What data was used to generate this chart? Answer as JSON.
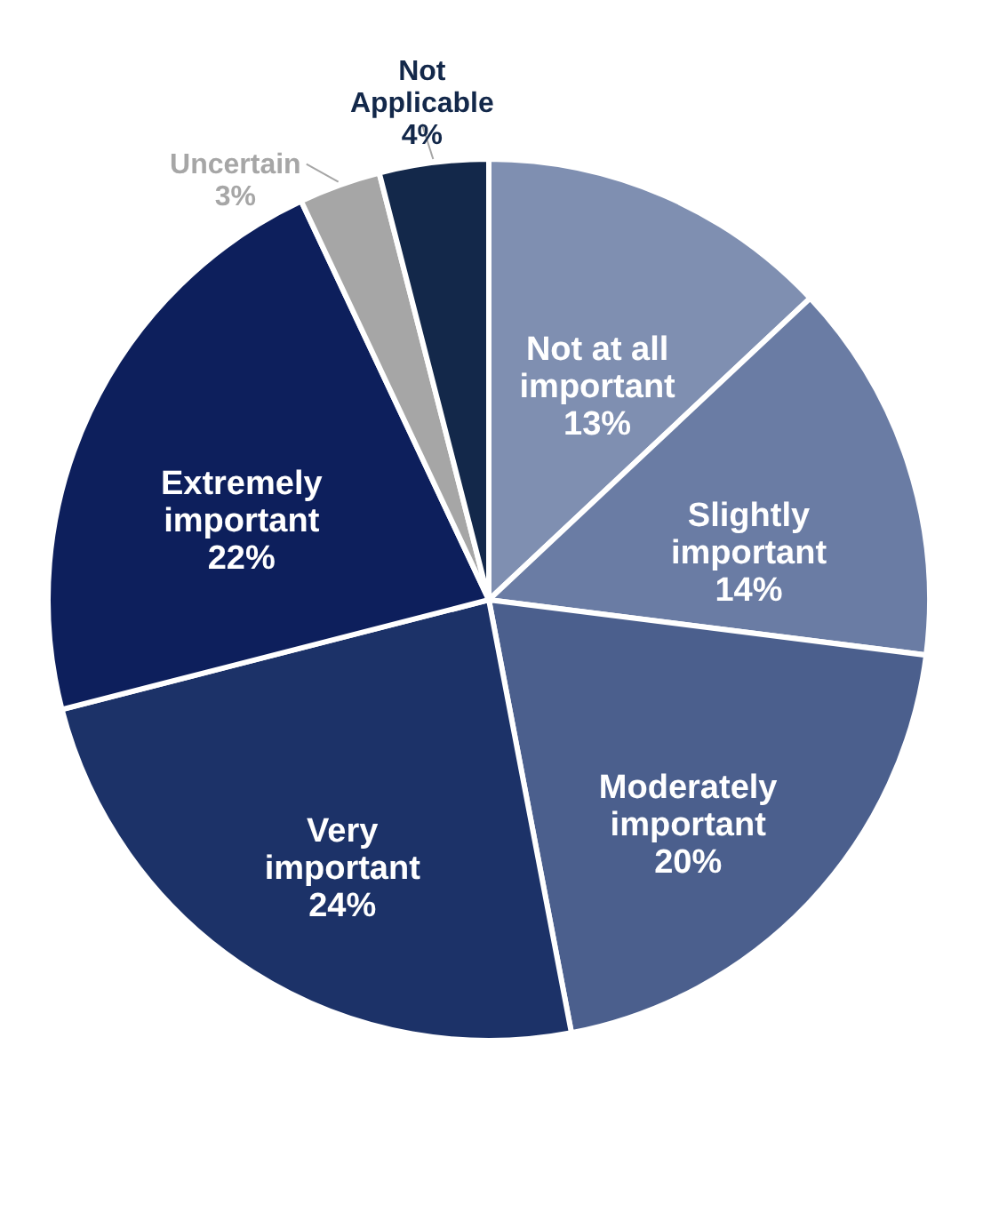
{
  "chart_data": {
    "type": "pie",
    "categories": [
      "Not at all important",
      "Slightly important",
      "Moderately important",
      "Very important",
      "Extremely important",
      "Uncertain",
      "Not Applicable"
    ],
    "values": [
      13,
      14,
      20,
      24,
      22,
      3,
      4
    ],
    "value_labels": [
      "13%",
      "14%",
      "20%",
      "24%",
      "22%",
      "3%",
      "4%"
    ],
    "colors": [
      "#7f8fb1",
      "#6a7ca4",
      "#4b5f8d",
      "#1c3268",
      "#0d1f5c",
      "#a6a6a6",
      "#13284a"
    ],
    "legend": false
  }
}
